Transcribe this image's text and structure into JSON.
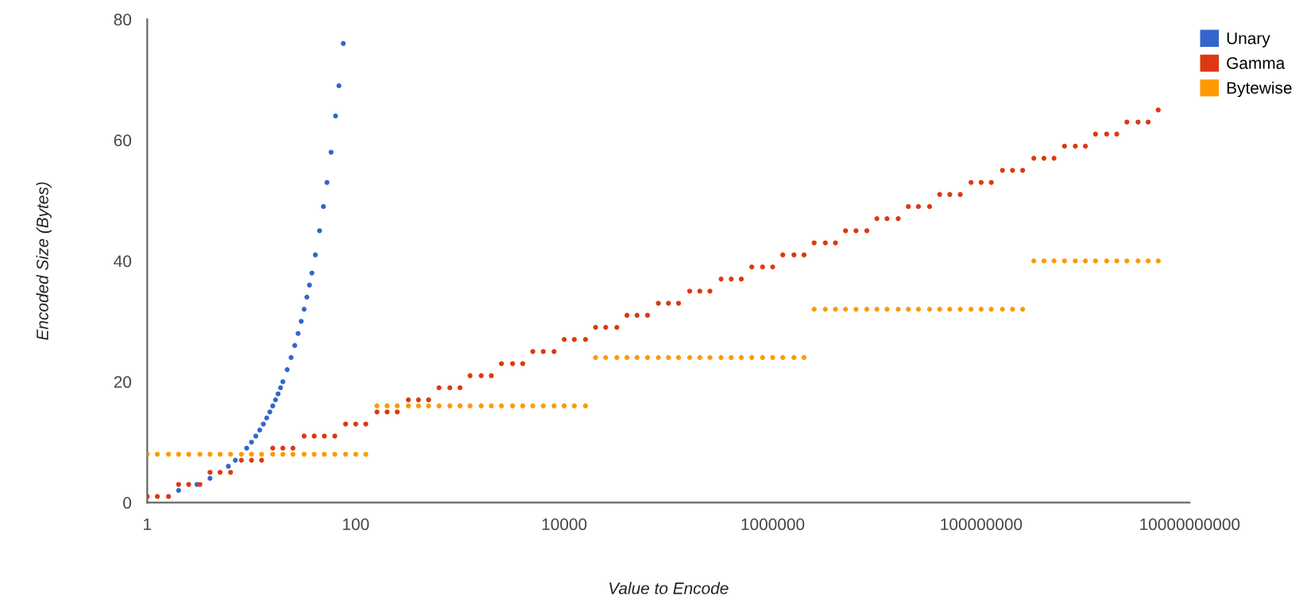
{
  "chart_data": {
    "type": "scatter",
    "xlabel": "Value to Encode",
    "ylabel": "Encoded Size (Bytes)",
    "log": "x",
    "xlim": [
      1,
      10000000000
    ],
    "xticks": [
      1,
      100,
      10000,
      1000000,
      100000000,
      10000000000
    ],
    "ylim": [
      0,
      80
    ],
    "yticks": [
      0,
      20,
      40,
      60,
      80
    ],
    "grid": false,
    "legend": "top right",
    "marker": "circle",
    "x": [
      1,
      1.25,
      1.6,
      2,
      2.5,
      3.2,
      4,
      5,
      6.3,
      8,
      10,
      12.5,
      16,
      20,
      25,
      32,
      40,
      50,
      63,
      80,
      100,
      125,
      160,
      200,
      250,
      320,
      400,
      500,
      630,
      800,
      1000,
      1250,
      1600,
      2000,
      2500,
      3200,
      4000,
      5000,
      6300,
      8000,
      10000,
      12500,
      16000,
      20000,
      25000,
      32000,
      40000,
      50000,
      63000,
      80000,
      100000,
      125000,
      160000,
      200000,
      250000,
      320000,
      400000,
      500000,
      630000,
      800000,
      1000000,
      1250000,
      1600000,
      2000000,
      2500000,
      3200000,
      4000000,
      5000000,
      6300000,
      8000000,
      10000000,
      12500000,
      16000000,
      20000000,
      25000000,
      32000000,
      40000000,
      50000000,
      63000000,
      80000000,
      100000000,
      125000000,
      160000000,
      200000000,
      250000000,
      320000000,
      400000000,
      500000000,
      630000000,
      800000000,
      1000000000,
      1250000000,
      1600000000,
      2000000000,
      2500000000,
      3200000000,
      4000000000,
      5000000000
    ],
    "series": [
      {
        "name": "Unary",
        "color": "#3366cc",
        "x": [
          2,
          3,
          4,
          6,
          7,
          9,
          10,
          11,
          12,
          13,
          14,
          15,
          16,
          17,
          18,
          19,
          20,
          22,
          24,
          26,
          28,
          30,
          32,
          34,
          36,
          38,
          41,
          45,
          49,
          53,
          58,
          64,
          69,
          76
        ],
        "values": [
          2,
          3,
          4,
          6,
          7,
          9,
          10,
          11,
          12,
          13,
          14,
          15,
          16,
          17,
          18,
          19,
          20,
          22,
          24,
          26,
          28,
          30,
          32,
          34,
          36,
          38,
          41,
          45,
          49,
          53,
          58,
          64,
          69,
          76
        ]
      },
      {
        "name": "Gamma",
        "color": "#dc3912",
        "values": [
          1,
          1,
          1,
          3,
          3,
          3,
          5,
          5,
          5,
          7,
          7,
          7,
          9,
          9,
          9,
          11,
          11,
          11,
          11,
          13,
          13,
          13,
          15,
          15,
          15,
          17,
          17,
          17,
          19,
          19,
          19,
          21,
          21,
          21,
          23,
          23,
          23,
          25,
          25,
          25,
          27,
          27,
          27,
          29,
          29,
          29,
          31,
          31,
          31,
          33,
          33,
          33,
          35,
          35,
          35,
          37,
          37,
          37,
          39,
          39,
          39,
          41,
          41,
          41,
          43,
          43,
          43,
          45,
          45,
          45,
          47,
          47,
          47,
          49,
          49,
          49,
          51,
          51,
          51,
          53,
          53,
          53,
          55,
          55,
          55,
          57,
          57,
          57,
          59,
          59,
          59,
          61,
          61,
          61,
          63,
          63,
          63,
          65
        ]
      },
      {
        "name": "Bytewise",
        "color": "#ff9900",
        "values": [
          8,
          8,
          8,
          8,
          8,
          8,
          8,
          8,
          8,
          8,
          8,
          8,
          8,
          8,
          8,
          8,
          8,
          8,
          8,
          8,
          8,
          8,
          16,
          16,
          16,
          16,
          16,
          16,
          16,
          16,
          16,
          16,
          16,
          16,
          16,
          16,
          16,
          16,
          16,
          16,
          16,
          16,
          16,
          24,
          24,
          24,
          24,
          24,
          24,
          24,
          24,
          24,
          24,
          24,
          24,
          24,
          24,
          24,
          24,
          24,
          24,
          24,
          24,
          24,
          32,
          32,
          32,
          32,
          32,
          32,
          32,
          32,
          32,
          32,
          32,
          32,
          32,
          32,
          32,
          32,
          32,
          32,
          32,
          32,
          32,
          40,
          40,
          40,
          40,
          40,
          40,
          40,
          40,
          40,
          40,
          40,
          40,
          40
        ]
      }
    ]
  }
}
